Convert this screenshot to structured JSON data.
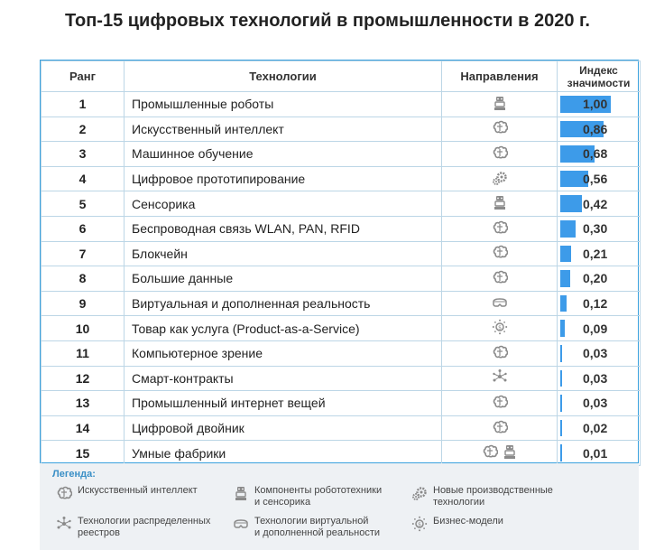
{
  "title": "Топ-15 цифровых технологий в промышленности в 2020 г.",
  "table": {
    "headers": {
      "rank": "Ранг",
      "tech": "Технологии",
      "dir": "Направления",
      "index_line1": "Индекс",
      "index_line2": "значимости"
    }
  },
  "chart_data": {
    "type": "table",
    "title": "Топ-15 цифровых технологий в промышленности в 2020 г.",
    "columns": [
      "Ранг",
      "Технологии",
      "Направления",
      "Индекс значимости"
    ],
    "xlim": [
      0,
      1
    ],
    "rows": [
      {
        "rank": "1",
        "tech": "Промышленные роботы",
        "value": 1.0,
        "label": "1,00",
        "icons": [
          "robot-icon"
        ]
      },
      {
        "rank": "2",
        "tech": "Искусственный интеллект",
        "value": 0.86,
        "label": "0,86",
        "icons": [
          "brain-icon"
        ]
      },
      {
        "rank": "3",
        "tech": "Машинное обучение",
        "value": 0.68,
        "label": "0,68",
        "icons": [
          "brain-icon"
        ]
      },
      {
        "rank": "4",
        "tech": "Цифровое прототипирование",
        "value": 0.56,
        "label": "0,56",
        "icons": [
          "gears-icon"
        ]
      },
      {
        "rank": "5",
        "tech": "Сенсорика",
        "value": 0.42,
        "label": "0,42",
        "icons": [
          "robot-icon"
        ]
      },
      {
        "rank": "6",
        "tech": "Беспроводная связь WLAN, PAN, RFID",
        "value": 0.3,
        "label": "0,30",
        "icons": [
          "brain-icon"
        ]
      },
      {
        "rank": "7",
        "tech": "Блокчейн",
        "value": 0.21,
        "label": "0,21",
        "icons": [
          "brain-icon"
        ]
      },
      {
        "rank": "8",
        "tech": "Большие данные",
        "value": 0.2,
        "label": "0,20",
        "icons": [
          "brain-icon"
        ]
      },
      {
        "rank": "9",
        "tech": "Виртуальная и дополненная реальность",
        "value": 0.12,
        "label": "0,12",
        "icons": [
          "vr-headset-icon"
        ]
      },
      {
        "rank": "10",
        "tech": "Товар как услуга (Product-as-a-Service)",
        "value": 0.09,
        "label": "0,09",
        "icons": [
          "business-model-icon"
        ]
      },
      {
        "rank": "11",
        "tech": "Компьютерное зрение",
        "value": 0.03,
        "label": "0,03",
        "icons": [
          "brain-icon"
        ]
      },
      {
        "rank": "12",
        "tech": "Смарт-контракты",
        "value": 0.03,
        "label": "0,03",
        "icons": [
          "network-icon"
        ]
      },
      {
        "rank": "13",
        "tech": "Промышленный интернет вещей",
        "value": 0.03,
        "label": "0,03",
        "icons": [
          "brain-icon"
        ]
      },
      {
        "rank": "14",
        "tech": "Цифровой двойник",
        "value": 0.02,
        "label": "0,02",
        "icons": [
          "brain-icon"
        ]
      },
      {
        "rank": "15",
        "tech": "Умные фабрики",
        "value": 0.01,
        "label": "0,01",
        "icons": [
          "brain-icon",
          "robot-icon"
        ]
      }
    ],
    "bar_color": "#3d9be9"
  },
  "legend": {
    "title": "Легенда:",
    "items": [
      {
        "icon": "brain-icon",
        "lines": [
          "Искусственный интеллект"
        ]
      },
      {
        "icon": "robot-icon",
        "lines": [
          "Компоненты робототехники",
          "и сенсорика"
        ]
      },
      {
        "icon": "gears-icon",
        "lines": [
          "Новые производственные",
          "технологии"
        ]
      },
      {
        "icon": "network-icon",
        "lines": [
          "Технологии распределенных",
          "реестров"
        ]
      },
      {
        "icon": "vr-headset-icon",
        "lines": [
          "Технологии виртуальной",
          "и дополненной реальности"
        ]
      },
      {
        "icon": "business-model-icon",
        "lines": [
          "Бизнес-модели"
        ]
      }
    ]
  },
  "colors": {
    "border": "#3aa1dd",
    "grid": "#bcd6e6",
    "bar": "#3d9be9",
    "icon": "#8a8a8a",
    "legend_bg": "#eef1f4",
    "legend_title": "#3a8fc6"
  }
}
